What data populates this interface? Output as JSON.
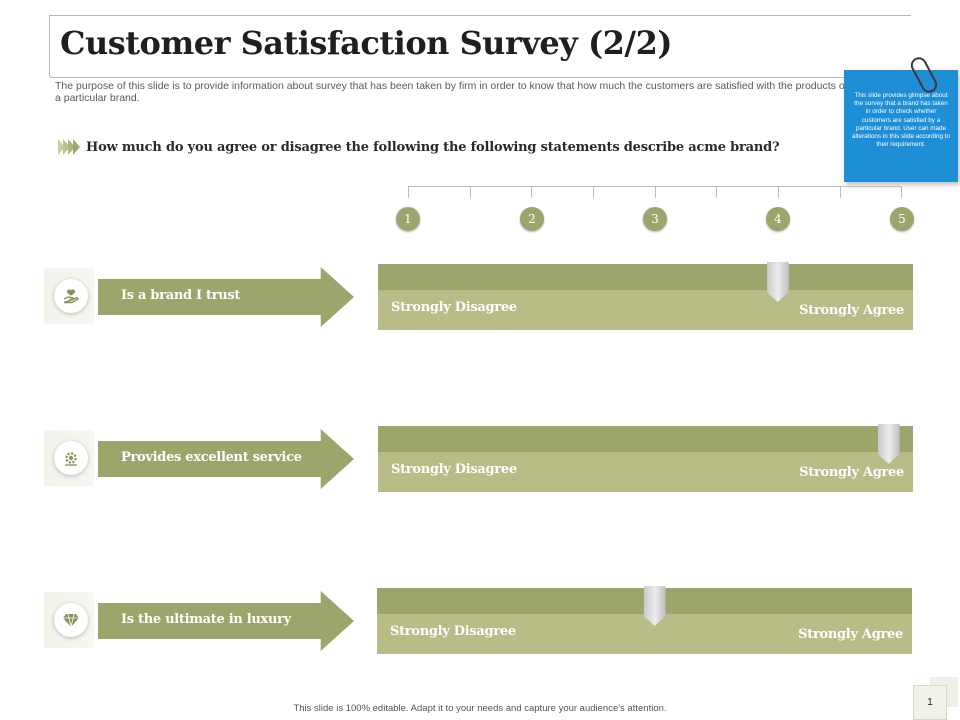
{
  "header": {
    "title": "Customer Satisfaction Survey (2/2)",
    "subtitle": "The purpose of this slide is to provide information about survey that has been taken by firm in order to know that how much the customers are satisfied with the products of a particular brand."
  },
  "question": "How much do you agree or disagree the following the following statements describe acme brand?",
  "note": {
    "text": "This slide provides glimpse about the survey that a brand has taken in order to check whether customers are satisfied by a particular brand. User can made alterations in this slide according to their requirement."
  },
  "scale": {
    "points": [
      "1",
      "2",
      "3",
      "4",
      "5"
    ]
  },
  "rows": [
    {
      "statement": "Is a brand I trust",
      "icon": "hand-heart-icon",
      "left_label": "Strongly Disagree",
      "right_label": "Strongly Agree",
      "rating": 4.0
    },
    {
      "statement": "Provides excellent service",
      "icon": "service-gear-icon",
      "left_label": "Strongly Disagree",
      "right_label": "Strongly Agree",
      "rating": 4.9
    },
    {
      "statement": "Is the ultimate in luxury",
      "icon": "diamond-icon",
      "left_label": "Strongly Disagree",
      "right_label": "Strongly Agree",
      "rating": 3.0
    }
  ],
  "footer": {
    "text": "This slide is 100% editable. Adapt it to your needs and capture your audience's attention.",
    "page_number": "1"
  },
  "colors": {
    "accent": "#9ea56c",
    "accent_light": "#b9bc87",
    "note_blue": "#1e8fd6"
  }
}
